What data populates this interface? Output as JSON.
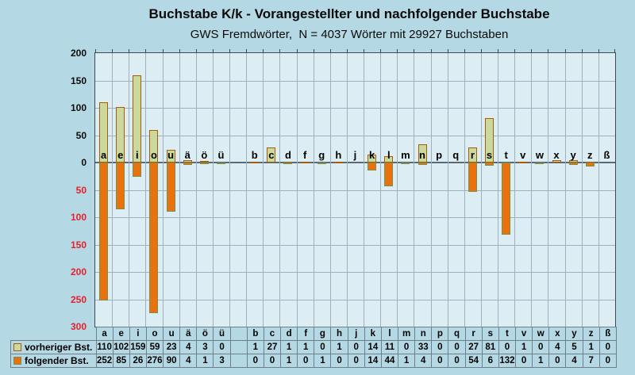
{
  "title": "Buchstabe K/k - Vorangestellter und nachfolgender Buchstabe",
  "subtitle": "GWS Fremdwörter,  N = 4037 Wörter mit 29927 Buchstaben",
  "colors": {
    "page_bg": "#b5d9e4",
    "plot_bg": "#dcedf3",
    "grid": "#9fb0bc",
    "zero_line": "#5a6a74",
    "plot_border": "#3e4a52",
    "bar_up_fill": "#ccd99d",
    "bar_up_border": "#a85c08",
    "bar_down_fill": "#e8730e",
    "bar_down_border": "#7d8d4e",
    "axis_label_pos": "#0a0a0a",
    "axis_label_neg": "#e81e2c",
    "table_border": "#6f7f8a"
  },
  "chart_data": {
    "type": "bar",
    "orientation": "diverging-vertical",
    "categories": [
      "a",
      "e",
      "i",
      "o",
      "u",
      "ä",
      "ö",
      "ü",
      "",
      "b",
      "c",
      "d",
      "f",
      "g",
      "h",
      "j",
      "k",
      "l",
      "m",
      "n",
      "p",
      "q",
      "r",
      "s",
      "t",
      "v",
      "w",
      "x",
      "y",
      "z",
      "ß"
    ],
    "series": [
      {
        "name": "vorheriger Bst.",
        "direction": "up",
        "values": [
          110,
          102,
          159,
          59,
          23,
          4,
          3,
          0,
          null,
          1,
          27,
          1,
          1,
          0,
          1,
          0,
          14,
          11,
          0,
          33,
          0,
          0,
          27,
          81,
          0,
          1,
          0,
          4,
          5,
          1,
          0
        ]
      },
      {
        "name": "folgender Bst.",
        "direction": "down",
        "values": [
          252,
          85,
          26,
          276,
          90,
          4,
          1,
          3,
          null,
          0,
          0,
          1,
          0,
          1,
          0,
          0,
          14,
          44,
          1,
          4,
          0,
          0,
          54,
          6,
          132,
          0,
          1,
          0,
          4,
          7,
          0
        ]
      }
    ],
    "ylim": [
      -300,
      200
    ],
    "yticks": [
      {
        "value": 200,
        "label": "200"
      },
      {
        "value": 150,
        "label": "150"
      },
      {
        "value": 100,
        "label": "100"
      },
      {
        "value": 50,
        "label": "50"
      },
      {
        "value": 0,
        "label": "0"
      },
      {
        "value": -50,
        "label": "50"
      },
      {
        "value": -100,
        "label": "100"
      },
      {
        "value": -150,
        "label": "150"
      },
      {
        "value": -200,
        "label": "200"
      },
      {
        "value": -250,
        "label": "250"
      },
      {
        "value": -300,
        "label": "300"
      }
    ],
    "grid": true,
    "legend_position": "data-table-left"
  }
}
